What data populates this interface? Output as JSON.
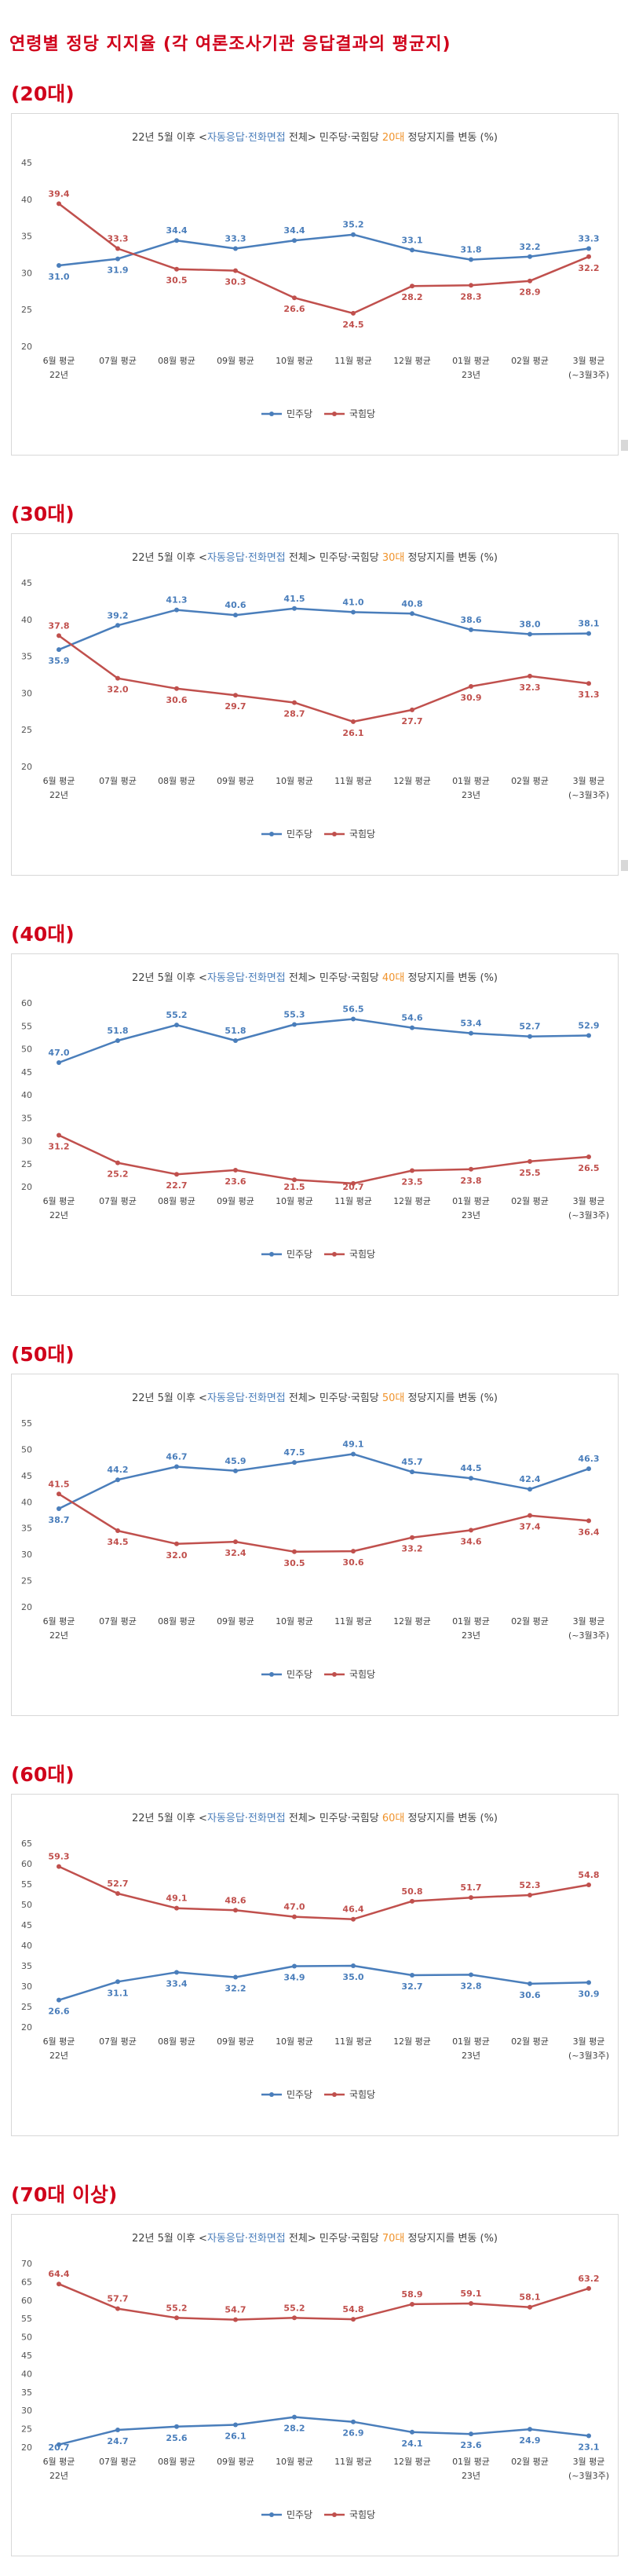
{
  "page": {
    "title": "연령별 정당 지지율 (각 여론조사기관 응답결과의 평균지)"
  },
  "chart_data": [
    {
      "heading": "(20대)",
      "type": "line",
      "title": {
        "prefix": "22년 5월 이후 <",
        "highlight": "자동응답·전화면접",
        "middle": " 전체> 민주당·국힘당 ",
        "age": "20대",
        "suffix": " 정당지지를 변동 (%)"
      },
      "categories": [
        "6월 평균",
        "07월 평균",
        "08월 평균",
        "09월 평균",
        "10월 평균",
        "11월 평균",
        "12월 평균",
        "01월 평균",
        "02월 평균",
        "3월 평균"
      ],
      "sub_labels": [
        "22년",
        "",
        "",
        "",
        "",
        "",
        "",
        "23년",
        "",
        "(~3월3주)"
      ],
      "ylim": [
        20,
        45
      ],
      "yticks": [
        20,
        25,
        30,
        35,
        40,
        45
      ],
      "series": [
        {
          "name": "민주당",
          "color": "#4a7ebb",
          "values": [
            31.0,
            31.9,
            34.4,
            33.3,
            34.4,
            35.2,
            33.1,
            31.8,
            32.2,
            33.3
          ]
        },
        {
          "name": "국힘당",
          "color": "#c0504d",
          "values": [
            39.4,
            33.3,
            30.5,
            30.3,
            26.6,
            24.5,
            28.2,
            28.3,
            28.9,
            32.2
          ]
        }
      ],
      "legend_position": "bottom-center",
      "grid": false
    },
    {
      "heading": "(30대)",
      "type": "line",
      "title": {
        "prefix": "22년 5월 이후 <",
        "highlight": "자동응답·전화면접",
        "middle": " 전체> 민주당·국힘당 ",
        "age": "30대",
        "suffix": " 정당지지를 변동 (%)"
      },
      "categories": [
        "6월 평균",
        "07월 평균",
        "08월 평균",
        "09월 평균",
        "10월 평균",
        "11월 평균",
        "12월 평균",
        "01월 평균",
        "02월 평균",
        "3월 평균"
      ],
      "sub_labels": [
        "22년",
        "",
        "",
        "",
        "",
        "",
        "",
        "23년",
        "",
        "(~3월3주)"
      ],
      "ylim": [
        20,
        45
      ],
      "yticks": [
        20,
        25,
        30,
        35,
        40,
        45
      ],
      "series": [
        {
          "name": "민주당",
          "color": "#4a7ebb",
          "values": [
            35.9,
            39.2,
            41.3,
            40.6,
            41.5,
            41.0,
            40.8,
            38.6,
            38.0,
            38.1
          ]
        },
        {
          "name": "국힘당",
          "color": "#c0504d",
          "values": [
            37.8,
            32.0,
            30.6,
            29.7,
            28.7,
            26.1,
            27.7,
            30.9,
            32.3,
            31.3
          ]
        }
      ],
      "legend_position": "bottom-center",
      "grid": false
    },
    {
      "heading": "(40대)",
      "type": "line",
      "title": {
        "prefix": "22년 5월 이후 <",
        "highlight": "자동응답·전화면접",
        "middle": " 전체> 민주당·국힘당 ",
        "age": "40대",
        "suffix": " 정당지지를 변동 (%)"
      },
      "categories": [
        "6월 평균",
        "07월 평균",
        "08월 평균",
        "09월 평균",
        "10월 평균",
        "11월 평균",
        "12월 평균",
        "01월 평균",
        "02월 평균",
        "3월 평균"
      ],
      "sub_labels": [
        "22년",
        "",
        "",
        "",
        "",
        "",
        "",
        "23년",
        "",
        "(~3월3주)"
      ],
      "ylim": [
        20,
        60
      ],
      "yticks": [
        20,
        25,
        30,
        35,
        40,
        45,
        50,
        55,
        60
      ],
      "series": [
        {
          "name": "민주당",
          "color": "#4a7ebb",
          "values": [
            47.0,
            51.8,
            55.2,
            51.8,
            55.3,
            56.5,
            54.6,
            53.4,
            52.7,
            52.9
          ]
        },
        {
          "name": "국힘당",
          "color": "#c0504d",
          "values": [
            31.2,
            25.2,
            22.7,
            23.6,
            21.5,
            20.7,
            23.5,
            23.8,
            25.5,
            26.5
          ]
        }
      ],
      "legend_position": "bottom-center",
      "grid": false
    },
    {
      "heading": "(50대)",
      "type": "line",
      "title": {
        "prefix": "22년 5월 이후 <",
        "highlight": "자동응답·전화면접",
        "middle": " 전체> 민주당·국힘당 ",
        "age": "50대",
        "suffix": " 정당지지를 변동 (%)"
      },
      "categories": [
        "6월 평균",
        "07월 평균",
        "08월 평균",
        "09월 평균",
        "10월 평균",
        "11월 평균",
        "12월 평균",
        "01월 평균",
        "02월 평균",
        "3월 평균"
      ],
      "sub_labels": [
        "22년",
        "",
        "",
        "",
        "",
        "",
        "",
        "23년",
        "",
        "(~3월3주)"
      ],
      "ylim": [
        20,
        55
      ],
      "yticks": [
        20,
        25,
        30,
        35,
        40,
        45,
        50,
        55
      ],
      "series": [
        {
          "name": "민주당",
          "color": "#4a7ebb",
          "values": [
            38.7,
            44.2,
            46.7,
            45.9,
            47.5,
            49.1,
            45.7,
            44.5,
            42.4,
            46.3
          ]
        },
        {
          "name": "국힘당",
          "color": "#c0504d",
          "values": [
            41.5,
            34.5,
            32.0,
            32.4,
            30.5,
            30.6,
            33.2,
            34.6,
            37.4,
            36.4
          ]
        }
      ],
      "legend_position": "bottom-center",
      "grid": false
    },
    {
      "heading": "(60대)",
      "type": "line",
      "title": {
        "prefix": "22년 5월 이후 <",
        "highlight": "자동응답·전화면접",
        "middle": " 전체> 민주당·국힘당 ",
        "age": "60대",
        "suffix": " 정당지지를 변동 (%)"
      },
      "categories": [
        "6월 평균",
        "07월 평균",
        "08월 평균",
        "09월 평균",
        "10월 평균",
        "11월 평균",
        "12월 평균",
        "01월 평균",
        "02월 평균",
        "3월 평균"
      ],
      "sub_labels": [
        "22년",
        "",
        "",
        "",
        "",
        "",
        "",
        "23년",
        "",
        "(~3월3주)"
      ],
      "ylim": [
        20,
        65
      ],
      "yticks": [
        20,
        25,
        30,
        35,
        40,
        45,
        50,
        55,
        60,
        65
      ],
      "series": [
        {
          "name": "민주당",
          "color": "#4a7ebb",
          "values": [
            26.6,
            31.1,
            33.4,
            32.2,
            34.9,
            35.0,
            32.7,
            32.8,
            30.6,
            30.9
          ]
        },
        {
          "name": "국힘당",
          "color": "#c0504d",
          "values": [
            59.3,
            52.7,
            49.1,
            48.6,
            47.0,
            46.4,
            50.8,
            51.7,
            52.3,
            54.8
          ]
        }
      ],
      "legend_position": "bottom-center",
      "grid": false
    },
    {
      "heading": "(70대 이상)",
      "type": "line",
      "title": {
        "prefix": "22년 5월 이후 <",
        "highlight": "자동응답·전화면접",
        "middle": " 전체> 민주당·국힘당 ",
        "age": "70대",
        "suffix": " 정당지지를 변동 (%)"
      },
      "categories": [
        "6월 평균",
        "07월 평균",
        "08월 평균",
        "09월 평균",
        "10월 평균",
        "11월 평균",
        "12월 평균",
        "01월 평균",
        "02월 평균",
        "3월 평균"
      ],
      "sub_labels": [
        "22년",
        "",
        "",
        "",
        "",
        "",
        "",
        "23년",
        "",
        "(~3월3주)"
      ],
      "ylim": [
        20,
        70
      ],
      "yticks": [
        20,
        25,
        30,
        35,
        40,
        45,
        50,
        55,
        60,
        65,
        70
      ],
      "series": [
        {
          "name": "민주당",
          "color": "#4a7ebb",
          "values": [
            20.7,
            24.7,
            25.6,
            26.1,
            28.2,
            26.9,
            24.1,
            23.6,
            24.9,
            23.1
          ]
        },
        {
          "name": "국힘당",
          "color": "#c0504d",
          "values": [
            64.4,
            57.7,
            55.2,
            54.7,
            55.2,
            54.8,
            58.9,
            59.1,
            58.1,
            63.2
          ]
        }
      ],
      "legend_position": "bottom-center",
      "grid": false
    }
  ]
}
